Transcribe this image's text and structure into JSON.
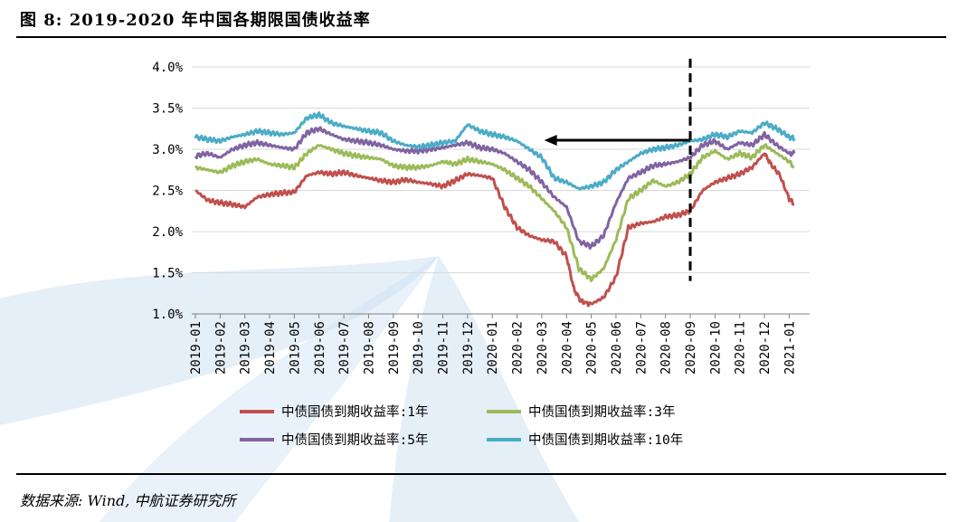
{
  "header": {
    "title": "图 8: 2019-2020 年中国各期限国债收益率"
  },
  "footer": {
    "source": "数据来源: Wind, 中航证券研究所"
  },
  "colors": {
    "y1": "#c0504d",
    "y3": "#9bbb59",
    "y5": "#8064a2",
    "y10": "#4bacc6",
    "watermark": "#cfe2f3"
  },
  "chart_data": {
    "type": "line",
    "title": "",
    "xlabel": "",
    "ylabel": "",
    "ylim": [
      1.0,
      4.0
    ],
    "yticks": [
      1.0,
      1.5,
      2.0,
      2.5,
      3.0,
      3.5,
      4.0
    ],
    "ytick_labels": [
      "1.0%",
      "1.5%",
      "2.0%",
      "2.5%",
      "3.0%",
      "3.5%",
      "4.0%"
    ],
    "grid": "horizontal",
    "legend_position": "bottom",
    "categories": [
      "2019-01",
      "2019-02",
      "2019-03",
      "2019-04",
      "2019-05",
      "2019-06",
      "2019-07",
      "2019-08",
      "2019-09",
      "2019-10",
      "2019-11",
      "2019-12",
      "2020-01",
      "2020-02",
      "2020-03",
      "2020-04",
      "2020-05",
      "2020-06",
      "2020-07",
      "2020-08",
      "2020-09",
      "2020-10",
      "2020-11",
      "2020-12",
      "2021-01"
    ],
    "series": [
      {
        "name": "中债国债到期收益率:1年",
        "color": "#c0504d",
        "x": [
          0,
          0.5,
          1,
          1.5,
          2,
          2.5,
          3,
          3.5,
          4,
          4.5,
          5,
          5.5,
          6,
          6.5,
          7,
          7.5,
          8,
          8.5,
          9,
          9.5,
          10,
          10.5,
          11,
          11.5,
          12,
          12.5,
          13,
          13.5,
          14,
          14.5,
          15,
          15.3,
          15.6,
          16,
          16.5,
          17,
          17.5,
          18,
          18.5,
          19,
          19.5,
          20,
          20.5,
          21,
          21.5,
          22,
          22.5,
          23,
          23.3,
          23.6,
          24,
          24.2
        ],
        "values": [
          2.5,
          2.38,
          2.35,
          2.33,
          2.3,
          2.42,
          2.45,
          2.47,
          2.48,
          2.68,
          2.72,
          2.7,
          2.72,
          2.68,
          2.65,
          2.62,
          2.6,
          2.63,
          2.6,
          2.58,
          2.55,
          2.62,
          2.7,
          2.68,
          2.65,
          2.3,
          2.05,
          1.95,
          1.9,
          1.88,
          1.7,
          1.3,
          1.15,
          1.12,
          1.2,
          1.45,
          2.05,
          2.1,
          2.12,
          2.18,
          2.2,
          2.25,
          2.5,
          2.6,
          2.65,
          2.7,
          2.78,
          2.95,
          2.8,
          2.7,
          2.4,
          2.33
        ]
      },
      {
        "name": "中债国债到期收益率:3年",
        "color": "#9bbb59",
        "x": [
          0,
          0.5,
          1,
          1.5,
          2,
          2.5,
          3,
          3.5,
          4,
          4.5,
          5,
          5.5,
          6,
          6.5,
          7,
          7.5,
          8,
          8.5,
          9,
          9.5,
          10,
          10.5,
          11,
          11.5,
          12,
          12.5,
          13,
          13.5,
          14,
          14.5,
          15,
          15.5,
          16,
          16.5,
          17,
          17.5,
          18,
          18.5,
          19,
          19.5,
          20,
          20.5,
          21,
          21.5,
          22,
          22.5,
          23,
          23.5,
          24,
          24.2
        ],
        "values": [
          2.78,
          2.75,
          2.72,
          2.8,
          2.85,
          2.88,
          2.82,
          2.8,
          2.78,
          2.95,
          3.05,
          3.0,
          2.95,
          2.92,
          2.9,
          2.88,
          2.8,
          2.78,
          2.78,
          2.8,
          2.85,
          2.82,
          2.88,
          2.85,
          2.82,
          2.75,
          2.65,
          2.55,
          2.4,
          2.25,
          2.05,
          1.55,
          1.42,
          1.55,
          1.9,
          2.4,
          2.5,
          2.62,
          2.55,
          2.6,
          2.7,
          2.9,
          2.98,
          2.88,
          2.95,
          2.9,
          3.05,
          2.95,
          2.85,
          2.78
        ]
      },
      {
        "name": "中债国债到期收益率:5年",
        "color": "#8064a2",
        "x": [
          0,
          0.5,
          1,
          1.5,
          2,
          2.5,
          3,
          3.5,
          4,
          4.5,
          5,
          5.5,
          6,
          6.5,
          7,
          7.5,
          8,
          8.5,
          9,
          9.5,
          10,
          10.5,
          11,
          11.5,
          12,
          12.5,
          13,
          13.5,
          14,
          14.5,
          15,
          15.5,
          16,
          16.5,
          17,
          17.5,
          18,
          18.5,
          19,
          19.5,
          20,
          20.5,
          21,
          21.5,
          22,
          22.5,
          23,
          23.5,
          24,
          24.2
        ],
        "values": [
          2.92,
          2.95,
          2.9,
          3.0,
          3.05,
          3.08,
          3.05,
          3.02,
          3.0,
          3.2,
          3.25,
          3.18,
          3.12,
          3.1,
          3.08,
          3.05,
          3.0,
          2.98,
          2.98,
          3.0,
          3.02,
          3.05,
          3.08,
          3.02,
          3.0,
          2.95,
          2.85,
          2.75,
          2.6,
          2.42,
          2.3,
          1.88,
          1.82,
          1.95,
          2.35,
          2.65,
          2.72,
          2.8,
          2.82,
          2.85,
          2.9,
          3.05,
          3.1,
          3.0,
          3.08,
          3.05,
          3.18,
          3.05,
          2.95,
          2.95
        ]
      },
      {
        "name": "中债国债到期收益率:10年",
        "color": "#4bacc6",
        "x": [
          0,
          0.5,
          1,
          1.5,
          2,
          2.5,
          3,
          3.5,
          4,
          4.5,
          5,
          5.5,
          6,
          6.5,
          7,
          7.5,
          8,
          8.5,
          9,
          9.5,
          10,
          10.5,
          11,
          11.5,
          12,
          12.5,
          13,
          13.5,
          14,
          14.5,
          15,
          15.5,
          16,
          16.5,
          17,
          17.5,
          18,
          18.5,
          19,
          19.5,
          20,
          20.5,
          21,
          21.5,
          22,
          22.5,
          23,
          23.5,
          24,
          24.2
        ],
        "values": [
          3.15,
          3.12,
          3.1,
          3.15,
          3.18,
          3.22,
          3.2,
          3.18,
          3.2,
          3.38,
          3.42,
          3.32,
          3.28,
          3.25,
          3.22,
          3.2,
          3.1,
          3.05,
          3.03,
          3.05,
          3.08,
          3.1,
          3.3,
          3.22,
          3.18,
          3.15,
          3.1,
          3.0,
          2.9,
          2.65,
          2.6,
          2.52,
          2.55,
          2.6,
          2.75,
          2.85,
          2.95,
          3.0,
          3.02,
          3.05,
          3.1,
          3.12,
          3.18,
          3.15,
          3.22,
          3.2,
          3.32,
          3.25,
          3.15,
          3.13
        ]
      }
    ],
    "annotations": [
      {
        "type": "vertical-dashed-line",
        "x": 20.0,
        "ymin": 1.4,
        "ymax": 4.1
      },
      {
        "type": "arrow",
        "from": [
          20.0,
          3.11
        ],
        "to": [
          14.1,
          3.11
        ],
        "direction": "left"
      }
    ]
  }
}
